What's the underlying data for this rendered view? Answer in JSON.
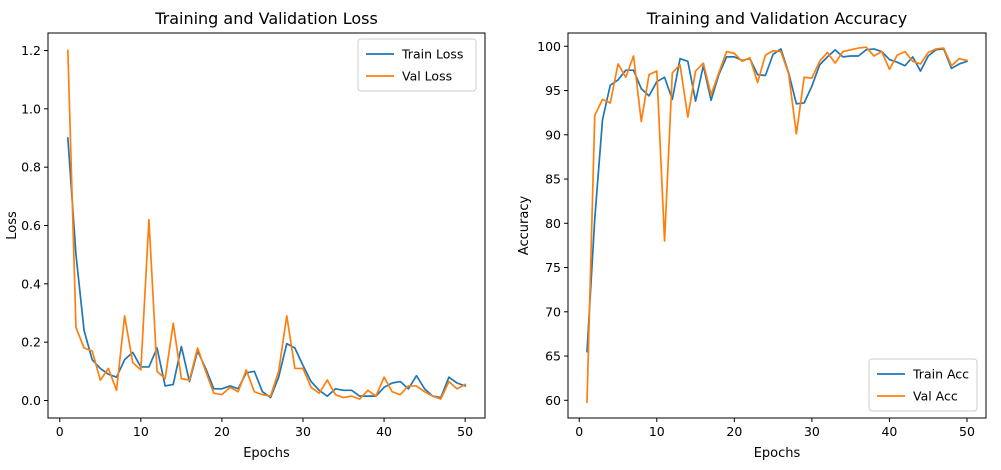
{
  "chart_data": [
    {
      "type": "line",
      "title": "Training and Validation Loss",
      "xlabel": "Epochs",
      "ylabel": "Loss",
      "xlim": [
        -1.45,
        52.45
      ],
      "ylim": [
        -0.06,
        1.26
      ],
      "xticks": [
        0,
        10,
        20,
        30,
        40,
        50
      ],
      "xtick_labels": [
        "0",
        "10",
        "20",
        "30",
        "40",
        "50"
      ],
      "yticks": [
        0.0,
        0.2,
        0.4,
        0.6,
        0.8,
        1.0,
        1.2
      ],
      "ytick_labels": [
        "0.0",
        "0.2",
        "0.4",
        "0.6",
        "0.8",
        "1.0",
        "1.2"
      ],
      "legend_position": "top-right",
      "grid": false,
      "x": [
        1,
        2,
        3,
        4,
        5,
        6,
        7,
        8,
        9,
        10,
        11,
        12,
        13,
        14,
        15,
        16,
        17,
        18,
        19,
        20,
        21,
        22,
        23,
        24,
        25,
        26,
        27,
        28,
        29,
        30,
        31,
        32,
        33,
        34,
        35,
        36,
        37,
        38,
        39,
        40,
        41,
        42,
        43,
        44,
        45,
        46,
        47,
        48,
        49,
        50
      ],
      "series": [
        {
          "name": "Train Loss",
          "color": "#1f77b4",
          "values": [
            0.9,
            0.5,
            0.24,
            0.14,
            0.11,
            0.09,
            0.08,
            0.14,
            0.165,
            0.115,
            0.115,
            0.18,
            0.05,
            0.055,
            0.185,
            0.065,
            0.17,
            0.11,
            0.04,
            0.04,
            0.05,
            0.04,
            0.095,
            0.1,
            0.03,
            0.01,
            0.08,
            0.195,
            0.18,
            0.12,
            0.065,
            0.035,
            0.015,
            0.04,
            0.035,
            0.035,
            0.015,
            0.015,
            0.015,
            0.045,
            0.06,
            0.065,
            0.04,
            0.085,
            0.04,
            0.015,
            0.01,
            0.08,
            0.06,
            0.05
          ]
        },
        {
          "name": "Val Loss",
          "color": "#ff7f0e",
          "values": [
            1.2,
            0.25,
            0.18,
            0.17,
            0.07,
            0.11,
            0.035,
            0.29,
            0.13,
            0.105,
            0.62,
            0.1,
            0.075,
            0.265,
            0.075,
            0.07,
            0.18,
            0.1,
            0.025,
            0.02,
            0.045,
            0.03,
            0.105,
            0.03,
            0.02,
            0.015,
            0.1,
            0.29,
            0.11,
            0.11,
            0.045,
            0.025,
            0.07,
            0.02,
            0.01,
            0.015,
            0.005,
            0.035,
            0.015,
            0.08,
            0.03,
            0.02,
            0.05,
            0.05,
            0.03,
            0.015,
            0.005,
            0.065,
            0.04,
            0.055
          ]
        }
      ]
    },
    {
      "type": "line",
      "title": "Training and Validation Accuracy",
      "xlabel": "Epochs",
      "ylabel": "Accuracy",
      "xlim": [
        -1.45,
        52.45
      ],
      "ylim": [
        58.0,
        101.5
      ],
      "xticks": [
        0,
        10,
        20,
        30,
        40,
        50
      ],
      "xtick_labels": [
        "0",
        "10",
        "20",
        "30",
        "40",
        "50"
      ],
      "yticks": [
        60,
        65,
        70,
        75,
        80,
        85,
        90,
        95,
        100
      ],
      "ytick_labels": [
        "60",
        "65",
        "70",
        "75",
        "80",
        "85",
        "90",
        "95",
        "100"
      ],
      "legend_position": "bottom-right",
      "grid": false,
      "x": [
        1,
        2,
        3,
        4,
        5,
        6,
        7,
        8,
        9,
        10,
        11,
        12,
        13,
        14,
        15,
        16,
        17,
        18,
        19,
        20,
        21,
        22,
        23,
        24,
        25,
        26,
        27,
        28,
        29,
        30,
        31,
        32,
        33,
        34,
        35,
        36,
        37,
        38,
        39,
        40,
        41,
        42,
        43,
        44,
        45,
        46,
        47,
        48,
        49,
        50
      ],
      "series": [
        {
          "name": "Train Acc",
          "color": "#1f77b4",
          "values": [
            65.5,
            80.5,
            91.7,
            95.6,
            96.2,
            97.3,
            97.3,
            95.2,
            94.4,
            96.0,
            96.5,
            94.0,
            98.6,
            98.3,
            93.8,
            97.8,
            93.9,
            96.8,
            98.8,
            98.8,
            98.4,
            98.6,
            96.8,
            96.7,
            99.1,
            99.7,
            97.0,
            93.5,
            93.6,
            95.5,
            97.9,
            98.8,
            99.6,
            98.8,
            98.9,
            98.9,
            99.6,
            99.7,
            99.4,
            98.5,
            98.2,
            97.8,
            98.8,
            97.2,
            98.9,
            99.6,
            99.7,
            97.5,
            98.0,
            98.3
          ]
        },
        {
          "name": "Val Acc",
          "color": "#ff7f0e",
          "values": [
            59.8,
            92.2,
            94.0,
            93.6,
            98.0,
            96.5,
            98.9,
            91.5,
            96.8,
            97.2,
            78.0,
            97.0,
            97.9,
            92.0,
            97.2,
            98.1,
            94.5,
            97.0,
            99.4,
            99.2,
            98.3,
            98.7,
            95.9,
            99.0,
            99.5,
            99.4,
            96.9,
            90.1,
            96.5,
            96.4,
            98.3,
            99.3,
            98.1,
            99.4,
            99.6,
            99.8,
            99.9,
            98.9,
            99.4,
            97.4,
            99.0,
            99.4,
            98.3,
            98.0,
            99.3,
            99.7,
            99.8,
            97.8,
            98.6,
            98.4
          ]
        }
      ]
    }
  ]
}
